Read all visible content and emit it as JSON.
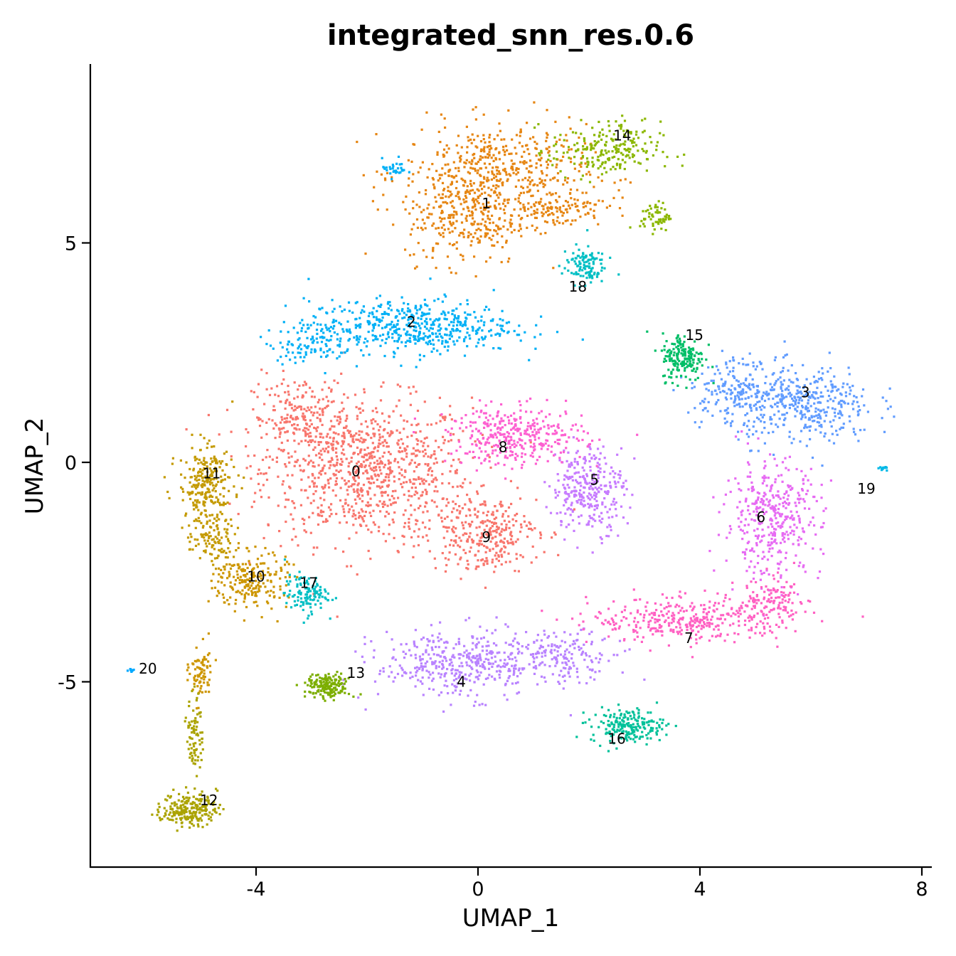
{
  "chart_data": {
    "type": "scatter",
    "title": "integrated_snn_res.0.6",
    "xlabel": "UMAP_1",
    "ylabel": "UMAP_2",
    "xlim": [
      -8.8,
      8.3
    ],
    "ylim": [
      -9.2,
      9.0
    ],
    "x_ticks": [
      -4,
      0,
      4,
      8
    ],
    "x_tick_labels": [
      "-4",
      "0",
      "4",
      "8"
    ],
    "y_ticks": [
      -5,
      0,
      5
    ],
    "y_tick_labels": [
      "-5",
      "0",
      "5"
    ],
    "legend": "none",
    "grid": false,
    "clusters": [
      {
        "name": "0",
        "color": "#F8766D",
        "label_pos": [
          -2.2,
          -0.2
        ]
      },
      {
        "name": "1",
        "color": "#E68613",
        "label_pos": [
          0.15,
          5.9
        ]
      },
      {
        "name": "2",
        "color": "#00B0F6",
        "label_pos": [
          -1.2,
          3.2
        ]
      },
      {
        "name": "3",
        "color": "#619CFF",
        "label_pos": [
          5.9,
          1.6
        ]
      },
      {
        "name": "4",
        "color": "#B983FF",
        "label_pos": [
          -0.3,
          -5.0
        ]
      },
      {
        "name": "5",
        "color": "#C77CFF",
        "label_pos": [
          2.1,
          -0.4
        ]
      },
      {
        "name": "6",
        "color": "#E76BF3",
        "label_pos": [
          5.1,
          -1.25
        ]
      },
      {
        "name": "7",
        "color": "#FF61C3",
        "label_pos": [
          3.8,
          -4.0
        ]
      },
      {
        "name": "8",
        "color": "#FD61D1",
        "label_pos": [
          0.45,
          0.35
        ]
      },
      {
        "name": "9",
        "color": "#F8766D",
        "label_pos": [
          0.15,
          -1.7
        ]
      },
      {
        "name": "10",
        "color": "#CD9600",
        "label_pos": [
          -4.0,
          -2.6
        ]
      },
      {
        "name": "11",
        "color": "#C49A00",
        "label_pos": [
          -4.8,
          -0.25
        ]
      },
      {
        "name": "12",
        "color": "#ABA300",
        "label_pos": [
          -4.85,
          -7.7
        ]
      },
      {
        "name": "13",
        "color": "#7CAE00",
        "label_pos": [
          -2.2,
          -4.8
        ]
      },
      {
        "name": "14",
        "color": "#8BB700",
        "label_pos": [
          2.6,
          7.45
        ]
      },
      {
        "name": "15",
        "color": "#00BE67",
        "label_pos": [
          3.9,
          2.9
        ]
      },
      {
        "name": "16",
        "color": "#00C19A",
        "label_pos": [
          2.5,
          -6.3
        ]
      },
      {
        "name": "17",
        "color": "#00BFC4",
        "label_pos": [
          -3.05,
          -2.75
        ]
      },
      {
        "name": "18",
        "color": "#00BFC4",
        "label_pos": [
          1.8,
          4.0
        ]
      },
      {
        "name": "19",
        "color": "#00B8E7",
        "label_pos": [
          7.0,
          -0.6
        ]
      },
      {
        "name": "20",
        "color": "#00A9FF",
        "label_pos": [
          -5.95,
          -4.7
        ]
      }
    ]
  }
}
